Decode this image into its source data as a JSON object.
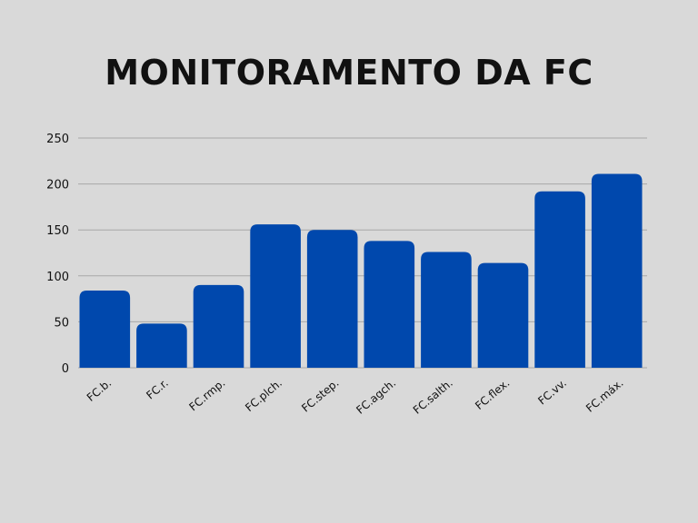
{
  "colors": {
    "background": "#d9d9d9",
    "bar": "#0048ad",
    "grid": "#a8a8a8",
    "text": "#111111"
  },
  "chart_data": {
    "type": "bar",
    "title": "MONITORAMENTO DA FC",
    "xlabel": "",
    "ylabel": "",
    "categories": [
      "FC.b.",
      "FC.r.",
      "FC.rmp.",
      "FC.plch.",
      "FC.step.",
      "FC.agch.",
      "FC.salth.",
      "FC.flex.",
      "FC.vv.",
      "FC.máx."
    ],
    "values": [
      84,
      48,
      90,
      156,
      150,
      138,
      126,
      114,
      192,
      211
    ],
    "ylim": [
      0,
      250
    ],
    "yticks": [
      0,
      50,
      100,
      150,
      200,
      250
    ],
    "grid": true,
    "legend": "none"
  }
}
